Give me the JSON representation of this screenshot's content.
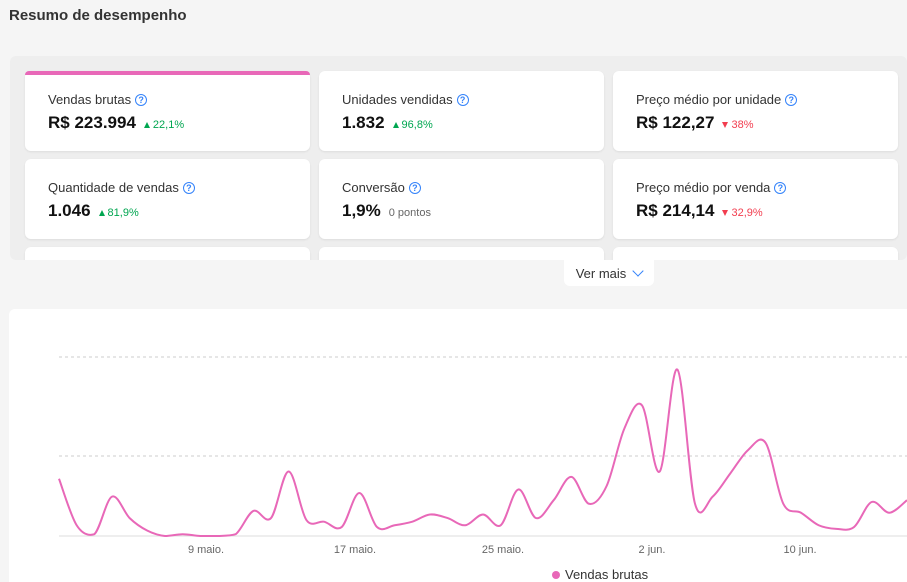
{
  "page_title": "Resumo de desempenho",
  "metrics": [
    {
      "label": "Vendas brutas",
      "value": "R$ 223.994",
      "delta": "22,1%",
      "trend": "up"
    },
    {
      "label": "Unidades vendidas",
      "value": "1.832",
      "delta": "96,8%",
      "trend": "up"
    },
    {
      "label": "Preço médio por unidade",
      "value": "R$ 122,27",
      "delta": "38%",
      "trend": "down"
    },
    {
      "label": "Quantidade de vendas",
      "value": "1.046",
      "delta": "81,9%",
      "trend": "up"
    },
    {
      "label": "Conversão",
      "value": "1,9%",
      "delta": "0 pontos",
      "trend": "neutral"
    },
    {
      "label": "Preço médio por venda",
      "value": "R$ 214,14",
      "delta": "32,9%",
      "trend": "down"
    }
  ],
  "see_more_label": "Ver mais",
  "colors": {
    "accent": "#e868b8",
    "up": "#00a650",
    "down": "#f23d4f",
    "help": "#3483fa"
  },
  "chart_data": {
    "type": "line",
    "x_ticks": [
      "9 maio.",
      "17 maio.",
      "25 maio.",
      "2 jun.",
      "10 jun."
    ],
    "series": [
      {
        "name": "Vendas brutas",
        "color": "#e868b8",
        "values": [
          32,
          6,
          1,
          22,
          10,
          3,
          0,
          1,
          0,
          0,
          1,
          14,
          10,
          36,
          9,
          8,
          5,
          24,
          5,
          6,
          8,
          12,
          10,
          6,
          12,
          6,
          26,
          10,
          20,
          33,
          18,
          28,
          60,
          73,
          36,
          93,
          18,
          22,
          35,
          48,
          52,
          18,
          13,
          6,
          4,
          5,
          19,
          13,
          20
        ]
      }
    ],
    "ylim": [
      0,
      100
    ],
    "grid": "dashed horizontal",
    "legend": "bottom"
  }
}
